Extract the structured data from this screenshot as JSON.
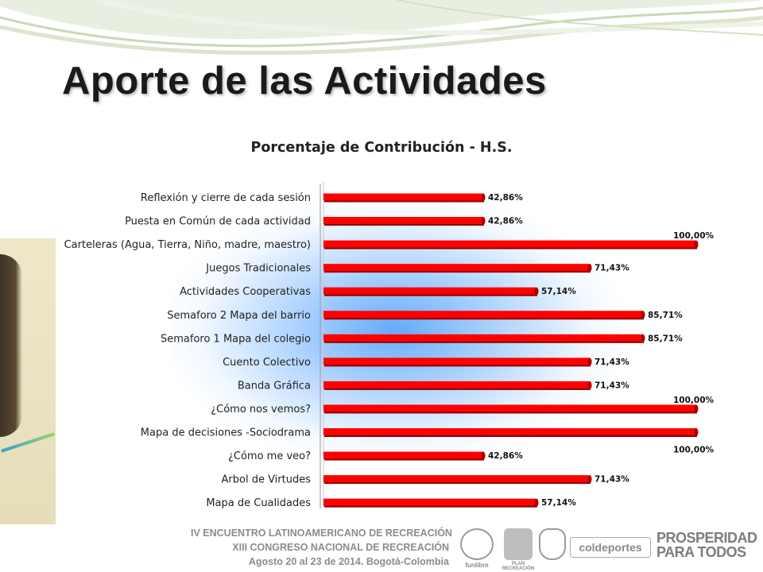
{
  "slide": {
    "title": "Aporte de las Actividades"
  },
  "chart_data": {
    "type": "bar",
    "orientation": "horizontal",
    "title": "Porcentaje de Contribución - H.S.",
    "xlim": [
      0,
      100
    ],
    "grid": false,
    "legend": "none",
    "bar_color": "#ff0000",
    "categories": [
      "Reflexión y cierre de cada sesión",
      "Puesta en Común de cada actividad",
      "Carteleras (Agua, Tierra, Niño, madre, maestro)",
      "Juegos Tradicionales",
      "Actividades Cooperativas",
      "Semaforo 2 Mapa del barrio",
      "Semaforo 1 Mapa del colegio",
      "Cuento Colectivo",
      "Banda Gráfica",
      "¿Cómo nos vemos?",
      "Mapa de decisiones -Sociodrama",
      "¿Cómo me veo?",
      "Arbol de Virtudes",
      "Mapa de Cualidades"
    ],
    "values": [
      42.86,
      42.86,
      100.0,
      71.43,
      57.14,
      85.71,
      85.71,
      71.43,
      71.43,
      100.0,
      100.0,
      42.86,
      71.43,
      57.14
    ],
    "labels": [
      "42,86%",
      "42,86%",
      "100,00%",
      "71,43%",
      "57,14%",
      "85,71%",
      "85,71%",
      "71,43%",
      "71,43%",
      "100,00%",
      "100,00%",
      "42,86%",
      "71,43%",
      "57,14%"
    ]
  },
  "footer": {
    "line1": "IV ENCUENTRO LATINOAMERICANO DE RECREACIÓN",
    "line2": "XIII CONGRESO NACIONAL DE RECREACIÓN",
    "line3": "Agosto 20 al 23 de 2014.  Bogotá-Colombia"
  },
  "logos": {
    "funlibre": "funlibre",
    "plan": "PLAN RECREACIÓN",
    "coldeportes": "coldeportes",
    "prosperidad_line1": "PROSPERIDAD",
    "prosperidad_line2": "PARA TODOS"
  },
  "colors": {
    "bar": "#ff0000",
    "glow": "#4a9cff",
    "footer_text": "#8c8c8c"
  }
}
